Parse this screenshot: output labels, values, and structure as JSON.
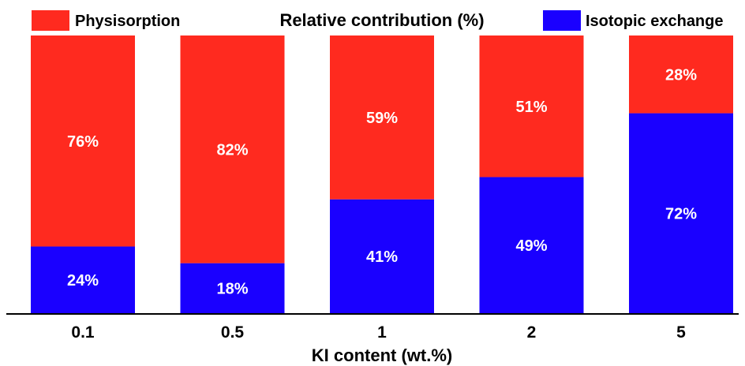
{
  "chart_data": {
    "type": "bar",
    "stacked": true,
    "title": "Relative contribution (%)",
    "xlabel": "KI content (wt.%)",
    "ylabel": "",
    "ylim": [
      0,
      100
    ],
    "grid": false,
    "categories": [
      "0.1",
      "0.5",
      "1",
      "2",
      "5"
    ],
    "series": [
      {
        "name": "Isotopic exchange",
        "color": "#1a00ff",
        "values": [
          24,
          18,
          41,
          49,
          72
        ],
        "labels": [
          "24%",
          "18%",
          "41%",
          "49%",
          "72%"
        ]
      },
      {
        "name": "Physisorption",
        "color": "#ff2a1f",
        "values": [
          76,
          82,
          59,
          51,
          28
        ],
        "labels": [
          "76%",
          "82%",
          "59%",
          "51%",
          "28%"
        ]
      }
    ],
    "legend": [
      {
        "name": "Physisorption",
        "position": "top-left"
      },
      {
        "name": "Isotopic exchange",
        "position": "top-right"
      }
    ]
  }
}
